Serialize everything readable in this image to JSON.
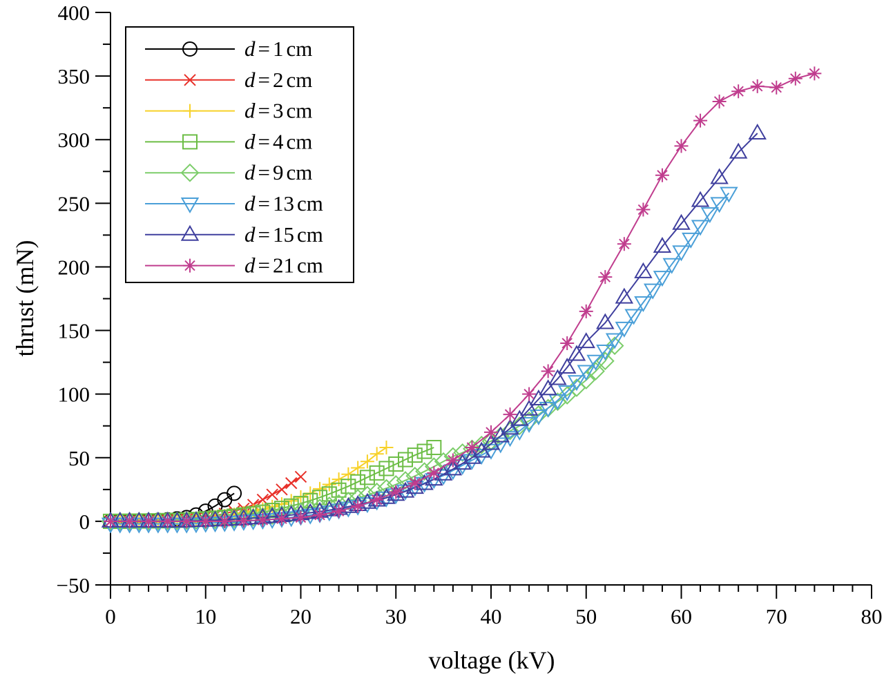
{
  "chart_data": {
    "type": "line",
    "xlabel": "voltage (kV)",
    "ylabel": "thrust (mN)",
    "xlim": [
      0,
      80
    ],
    "ylim": [
      -50,
      400
    ],
    "x_ticks": [
      0,
      10,
      20,
      30,
      40,
      50,
      60,
      70,
      80
    ],
    "x_tick_labels": [
      "0",
      "10",
      "20",
      "30",
      "40",
      "50",
      "60",
      "70",
      "80"
    ],
    "y_ticks": [
      -50,
      0,
      50,
      100,
      150,
      200,
      250,
      300,
      350,
      400
    ],
    "y_tick_labels": [
      "−50",
      "0",
      "50",
      "100",
      "150",
      "200",
      "250",
      "300",
      "350",
      "400"
    ],
    "grid": false,
    "legend_position": "top-left",
    "series": [
      {
        "name": "d = 1 cm",
        "legend_label": {
          "var": "d",
          "eq": "=",
          "value": "1",
          "unit": "cm"
        },
        "color": "#000000",
        "marker": "circle",
        "x": [
          0,
          1,
          2,
          3,
          4,
          5,
          6,
          7,
          8,
          9,
          10,
          11,
          12,
          13
        ],
        "y": [
          0,
          0.1,
          0.2,
          0.3,
          0.5,
          0.8,
          1.2,
          2,
          3,
          5,
          8,
          12,
          17,
          22
        ]
      },
      {
        "name": "d = 2 cm",
        "legend_label": {
          "var": "d",
          "eq": "=",
          "value": "2",
          "unit": "cm"
        },
        "color": "#e8312a",
        "marker": "x",
        "x": [
          0,
          1,
          2,
          3,
          4,
          5,
          6,
          7,
          8,
          9,
          10,
          11,
          12,
          13,
          14,
          15,
          16,
          17,
          18,
          19,
          20
        ],
        "y": [
          0,
          0,
          0.1,
          0.2,
          0.3,
          0.5,
          0.8,
          1.2,
          1.8,
          2.5,
          3.5,
          4.5,
          6,
          8,
          10,
          13,
          17,
          21,
          25,
          30,
          35
        ]
      },
      {
        "name": "d = 3 cm",
        "legend_label": {
          "var": "d",
          "eq": "=",
          "value": "3",
          "unit": "cm"
        },
        "color": "#f7d128",
        "marker": "plus",
        "x": [
          0,
          1,
          2,
          3,
          4,
          5,
          6,
          7,
          8,
          9,
          10,
          11,
          12,
          13,
          14,
          15,
          16,
          17,
          18,
          19,
          20,
          21,
          22,
          23,
          24,
          25,
          26,
          27,
          28,
          29
        ],
        "y": [
          0,
          0,
          0.1,
          0.2,
          0.3,
          0.5,
          0.7,
          1,
          1.4,
          2,
          2.6,
          3.3,
          4.2,
          5.3,
          6.6,
          8,
          9.5,
          11.5,
          13.5,
          16,
          19,
          22,
          25.5,
          29,
          33,
          37,
          42,
          47,
          53,
          58
        ]
      },
      {
        "name": "d = 4 cm",
        "legend_label": {
          "var": "d",
          "eq": "=",
          "value": "4",
          "unit": "cm"
        },
        "color": "#6cbd45",
        "marker": "square",
        "x": [
          0,
          1,
          2,
          3,
          4,
          5,
          6,
          7,
          8,
          9,
          10,
          11,
          12,
          13,
          14,
          15,
          16,
          17,
          18,
          19,
          20,
          21,
          22,
          23,
          24,
          25,
          26,
          27,
          28,
          29,
          30,
          31,
          32,
          33,
          34
        ],
        "y": [
          0,
          0,
          0.1,
          0.2,
          0.3,
          0.4,
          0.6,
          0.8,
          1.1,
          1.5,
          2,
          2.5,
          3.2,
          4,
          5,
          6,
          7.2,
          8.6,
          10.2,
          12,
          14,
          16.3,
          18.8,
          21.5,
          24.5,
          27.5,
          31,
          34.5,
          38,
          41.5,
          45,
          48.5,
          52,
          55,
          58
        ]
      },
      {
        "name": "d = 9 cm",
        "legend_label": {
          "var": "d",
          "eq": "=",
          "value": "9",
          "unit": "cm"
        },
        "color": "#7ccd6a",
        "marker": "diamond",
        "x": [
          0,
          1,
          2,
          3,
          4,
          5,
          6,
          7,
          8,
          9,
          10,
          11,
          12,
          13,
          14,
          15,
          16,
          17,
          18,
          19,
          20,
          21,
          22,
          23,
          24,
          25,
          26,
          27,
          28,
          29,
          30,
          31,
          32,
          33,
          34,
          35,
          36,
          37,
          38,
          39,
          40,
          41,
          42,
          43,
          44,
          45,
          46,
          47,
          48,
          49,
          50,
          51,
          52,
          53
        ],
        "y": [
          0,
          0,
          0,
          0.1,
          0.1,
          0.2,
          0.3,
          0.4,
          0.5,
          0.7,
          0.9,
          1.2,
          1.5,
          1.9,
          2.4,
          3,
          3.7,
          4.5,
          5.4,
          6.5,
          7.7,
          9,
          10.5,
          12.2,
          14,
          16,
          18.2,
          20.6,
          23.2,
          26,
          29,
          32.2,
          35.6,
          39.2,
          43,
          47,
          51,
          54,
          57,
          60,
          63,
          67,
          71,
          75,
          79,
          84,
          89,
          94,
          99,
          105,
          111,
          118,
          126,
          138
        ]
      },
      {
        "name": "d = 13 cm",
        "legend_label": {
          "var": "d",
          "eq": "=",
          "value": "13",
          "unit": "cm"
        },
        "color": "#4a9fd8",
        "marker": "triangle-down",
        "x": [
          0,
          1,
          2,
          3,
          4,
          5,
          6,
          7,
          8,
          9,
          10,
          11,
          12,
          13,
          14,
          15,
          16,
          17,
          18,
          19,
          20,
          21,
          22,
          23,
          24,
          25,
          26,
          27,
          28,
          29,
          30,
          31,
          32,
          33,
          34,
          35,
          36,
          37,
          38,
          39,
          40,
          41,
          42,
          43,
          44,
          45,
          46,
          47,
          48,
          49,
          50,
          51,
          52,
          53,
          54,
          55,
          56,
          57,
          58,
          59,
          60,
          61,
          62,
          63,
          64,
          65
        ],
        "y": [
          -2,
          -2,
          -2,
          -2,
          -2,
          -2,
          -2,
          -2,
          -2,
          -1.8,
          -1.5,
          -1.2,
          -1,
          -0.5,
          0,
          0.5,
          1,
          1.6,
          2.3,
          3,
          4,
          5,
          6,
          7.5,
          9,
          10.5,
          12,
          14,
          16,
          18.5,
          21,
          24,
          27,
          30,
          33,
          36,
          40,
          44,
          48,
          52,
          56,
          61,
          66,
          71,
          77,
          83,
          89,
          95,
          102,
          110,
          118,
          126,
          134,
          143,
          152,
          162,
          172,
          182,
          192,
          202,
          212,
          222,
          232,
          242,
          250,
          258
        ]
      },
      {
        "name": "d = 15 cm",
        "legend_label": {
          "var": "d",
          "eq": "=",
          "value": "15",
          "unit": "cm"
        },
        "color": "#3f3f9e",
        "marker": "triangle-up",
        "x": [
          0,
          1,
          2,
          3,
          4,
          5,
          6,
          7,
          8,
          9,
          10,
          11,
          12,
          13,
          14,
          15,
          16,
          17,
          18,
          19,
          20,
          21,
          22,
          23,
          24,
          25,
          26,
          27,
          28,
          29,
          30,
          31,
          32,
          33,
          34,
          35,
          36,
          37,
          38,
          39,
          40,
          41,
          42,
          43,
          44,
          45,
          46,
          47,
          48,
          49,
          50,
          52,
          54,
          56,
          58,
          60,
          62,
          64,
          66,
          68
        ],
        "y": [
          0,
          0,
          0,
          0,
          0,
          0,
          0,
          0,
          0.2,
          0.4,
          0.6,
          0.9,
          1.2,
          1.6,
          2,
          2.5,
          3,
          3.6,
          4.3,
          5,
          5.8,
          6.7,
          7.7,
          8.8,
          10,
          11.5,
          13,
          14.7,
          16.5,
          18.5,
          21,
          23.5,
          26.5,
          29.5,
          33,
          37,
          41,
          45.5,
          50,
          55,
          61,
          67,
          73,
          80,
          88,
          96,
          104,
          112,
          121,
          131,
          141,
          156,
          176,
          196,
          216,
          234,
          252,
          270,
          290,
          305
        ]
      },
      {
        "name": "d = 21 cm",
        "legend_label": {
          "var": "d",
          "eq": "=",
          "value": "21",
          "unit": "cm"
        },
        "color": "#c03d8e",
        "marker": "asterisk",
        "x": [
          0,
          2,
          4,
          6,
          8,
          10,
          12,
          14,
          16,
          18,
          20,
          22,
          24,
          26,
          28,
          30,
          32,
          34,
          36,
          38,
          40,
          42,
          44,
          46,
          48,
          50,
          52,
          54,
          56,
          58,
          60,
          62,
          64,
          66,
          68,
          70,
          72,
          74
        ],
        "y": [
          0,
          0,
          0,
          0,
          0,
          0,
          0,
          0.5,
          1,
          2,
          3,
          5,
          8,
          12,
          17,
          23,
          30,
          38,
          48,
          58,
          70,
          84,
          100,
          118,
          140,
          165,
          192,
          218,
          245,
          272,
          295,
          315,
          330,
          338,
          342,
          341,
          348,
          352
        ]
      }
    ]
  }
}
